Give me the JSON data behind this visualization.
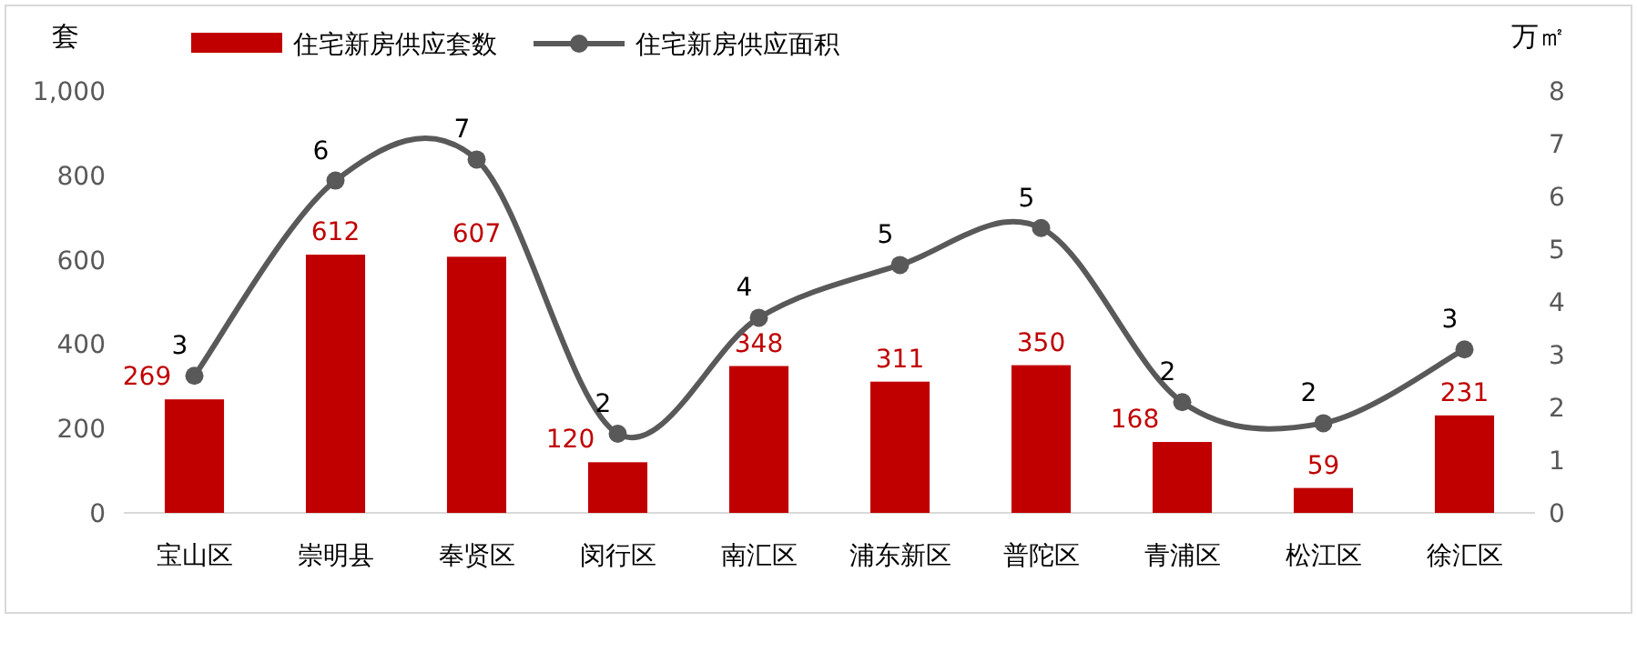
{
  "chart_data": {
    "type": "bar",
    "ylabel": "套",
    "y2label": "万㎡",
    "categories": [
      "宝山区",
      "崇明县",
      "奉贤区",
      "闵行区",
      "南汇区",
      "浦东新区",
      "普陀区",
      "青浦区",
      "松江区",
      "徐汇区"
    ],
    "series": [
      {
        "name": "住宅新房供应套数",
        "color": "#c00000",
        "values": [
          269,
          612,
          607,
          120,
          348,
          311,
          350,
          168,
          59,
          231
        ],
        "value_labels": [
          "269",
          "612",
          "607",
          "120",
          "348",
          "311",
          "350",
          "168",
          "59",
          "231"
        ]
      },
      {
        "name": "住宅新房供应面积",
        "type": "line",
        "axis": "y2",
        "color": "#595959",
        "marker": "circle",
        "values": [
          2.6,
          6.3,
          6.7,
          1.5,
          3.7,
          4.7,
          5.4,
          2.1,
          1.7,
          3.1
        ],
        "value_labels": [
          "3",
          "6",
          "7",
          "2",
          "4",
          "5",
          "5",
          "2",
          "2",
          "3"
        ]
      }
    ],
    "ylim": [
      0,
      1000
    ],
    "yticks": [
      0,
      200,
      400,
      600,
      800,
      {
        "value": 1000,
        "label": "1,000"
      }
    ],
    "y2lim": [
      0,
      8
    ],
    "y2ticks": [
      0,
      1,
      2,
      3,
      4,
      5,
      6,
      7,
      8
    ],
    "legend": "top",
    "grid": false
  }
}
